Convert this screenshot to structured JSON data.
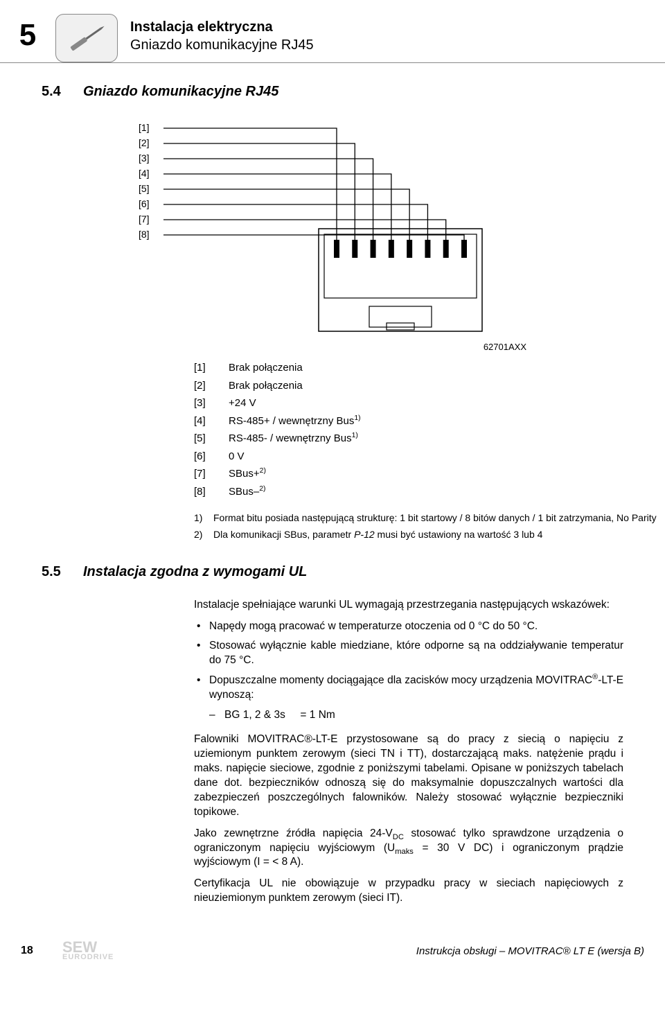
{
  "header": {
    "chapter_number": "5",
    "title_bold": "Instalacja elektryczna",
    "title_sub": "Gniazdo komunikacyjne RJ45"
  },
  "section_5_4": {
    "number": "5.4",
    "title": "Gniazdo komunikacyjne RJ45",
    "diagram": {
      "pin_labels": [
        "[1]",
        "[2]",
        "[3]",
        "[4]",
        "[5]",
        "[6]",
        "[7]",
        "[8]"
      ],
      "code": "62701AXX",
      "connector_body_color": "#ffffff",
      "connector_border_color": "#000000",
      "wire_color": "#000000",
      "pin_fill": "#000000"
    },
    "pin_table": [
      {
        "pin": "[1]",
        "desc": "Brak połączenia"
      },
      {
        "pin": "[2]",
        "desc": "Brak połączenia"
      },
      {
        "pin": "[3]",
        "desc": "+24 V"
      },
      {
        "pin": "[4]",
        "desc": "RS-485+ / wewnętrzny Bus",
        "sup": "1)"
      },
      {
        "pin": "[5]",
        "desc": "RS-485- / wewnętrzny Bus",
        "sup": "1)"
      },
      {
        "pin": "[6]",
        "desc": "0 V"
      },
      {
        "pin": "[7]",
        "desc": "SBus+",
        "sup": "2)"
      },
      {
        "pin": "[8]",
        "desc": "SBus–",
        "sup": "2)"
      }
    ],
    "footnotes": [
      {
        "n": "1)",
        "text": "Format bitu posiada następującą strukturę: 1 bit startowy / 8 bitów danych / 1 bit zatrzymania, No Parity"
      },
      {
        "n": "2)",
        "text_before": "Dla komunikacji SBus, parametr ",
        "em": "P-12",
        "text_after": " musi być ustawiony na wartość 3 lub 4"
      }
    ]
  },
  "section_5_5": {
    "number": "5.5",
    "title": "Instalacja zgodna z wymogami UL",
    "intro": "Instalacje spełniające warunki UL wymagają przestrzegania następujących wskazówek:",
    "bullets": [
      "Napędy mogą pracować w temperaturze otoczenia od 0 °C  do 50 °C.",
      "Stosować wyłącznie kable miedziane, które odporne są na oddziaływanie temperatur do 75 °C.",
      "Dopuszczalne momenty dociągające dla zacisków mocy urządzenia MOVITRAC®-LT-E wynoszą:"
    ],
    "sub_dash": "BG 1, 2 & 3s     = 1 Nm",
    "para1": "Falowniki MOVITRAC®-LT-E przystosowane są do pracy z siecią o napięciu z uziemionym punktem zerowym (sieci TN i TT), dostarczającą maks. natężenie prądu i maks. napięcie sieciowe, zgodnie z poniższymi tabelami. Opisane w poniższych tabelach dane dot. bezpieczników odnoszą się do maksymalnie dopuszczalnych wartości dla zabezpieczeń poszczególnych falowników. Należy stosować wyłącznie bezpieczniki topikowe.",
    "para2_a": "Jako zewnętrzne źródła napięcia 24-V",
    "para2_sub1": "DC",
    "para2_b": " stosować tylko sprawdzone urządzenia o ograniczonym napięciu wyjściowym (U",
    "para2_sub2": "maks",
    "para2_c": " = 30 V DC) i ograniczonym prądzie wyjściowym (I = < 8 A).",
    "para3": "Certyfikacja UL nie obowiązuje w przypadku pracy w sieciach napięciowych z nieuziemionym punktem zerowym (sieci IT)."
  },
  "footer": {
    "page_number": "18",
    "logo_main": "SEW",
    "logo_sub": "EURODRIVE",
    "text": "Instrukcja obsługi – MOVITRAC® LT E (wersja B)"
  }
}
